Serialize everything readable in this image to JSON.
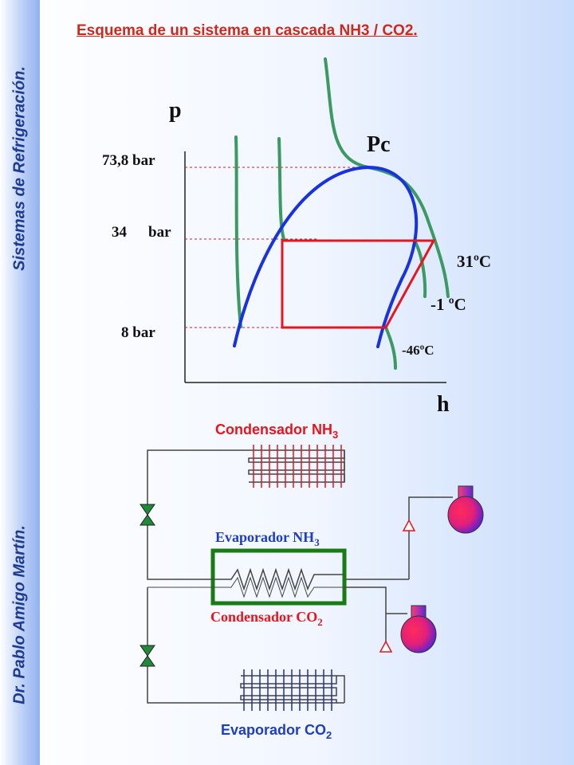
{
  "sidebar": {
    "top_text": "Sistemas de Refrigeración.",
    "bottom_text": "Dr. Pablo Amigo Martín."
  },
  "title": "Esquema de un sistema en cascada NH3 / CO2.",
  "ph_diagram": {
    "axis_y": "p",
    "axis_x": "h",
    "critical_point_label": "Pc",
    "pressure_labels": [
      "73,8 bar",
      "34",
      "bar",
      "8 bar"
    ],
    "isotherm_labels": [
      "31ºC",
      "-1 ºC",
      "-46ºC"
    ]
  },
  "schematic": {
    "condenser_nh3": "Condensador NH",
    "condenser_nh3_sub": "3",
    "evaporator_nh3": "Evaporador  NH",
    "evaporator_nh3_sub": "3",
    "condenser_co2": "Condensador  CO",
    "condenser_co2_sub": "2",
    "evaporator_co2": "Evaporador CO",
    "evaporator_co2_sub": "2"
  },
  "colors": {
    "title_red": "#cc2a1e",
    "saturation_blue": "#1832e0",
    "isotherm_green": "#3a9a62",
    "cycle_red": "#e8141e",
    "nh3_coil_red": "#e8141e",
    "co2_coil_blue": "#1d2fa8",
    "exchanger_green": "#1a7a14"
  }
}
